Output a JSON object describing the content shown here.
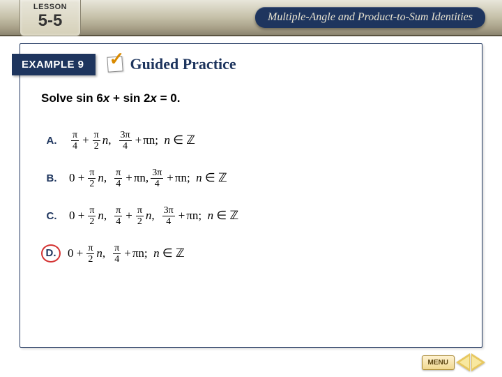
{
  "header": {
    "lesson_label": "LESSON",
    "lesson_number": "5-5",
    "chapter_title": "Multiple-Angle and Product-to-Sum Identities"
  },
  "example": {
    "label": "EXAMPLE 9",
    "guided_label": "Guided Practice"
  },
  "question": {
    "prefix": "Solve sin 6",
    "var1": "x",
    "mid": " + sin 2",
    "var2": "x",
    "suffix": " = 0."
  },
  "answers": [
    {
      "letter": "A.",
      "selected": false,
      "terms": [
        {
          "n": "π",
          "d": "4",
          "op": "+"
        },
        {
          "n": "π",
          "d": "2",
          "coef": "n",
          "sep": ","
        },
        {
          "n": "3π",
          "d": "4",
          "op": "+",
          "trail": "πn;"
        }
      ],
      "tail": " n ∈ ℤ"
    },
    {
      "letter": "B.",
      "selected": false,
      "terms": [
        {
          "lead": "0 +",
          "n": "π",
          "d": "2",
          "coef": "n",
          "sep": ","
        },
        {
          "n": "π",
          "d": "4",
          "op": "+",
          "trail": "πn,"
        },
        {
          "n": "3π",
          "d": "4",
          "op": "+",
          "trail": "πn;"
        }
      ],
      "tail": " n ∈ ℤ"
    },
    {
      "letter": "C.",
      "selected": false,
      "terms": [
        {
          "lead": "0 +",
          "n": "π",
          "d": "2",
          "coef": "n",
          "sep": ","
        },
        {
          "n": "π",
          "d": "4",
          "op": "+"
        },
        {
          "n": "π",
          "d": "2",
          "coef": "n",
          "sep": ","
        },
        {
          "n": "3π",
          "d": "4",
          "op": "+",
          "trail": "πn;"
        }
      ],
      "tail": " n ∈ ℤ"
    },
    {
      "letter": "D.",
      "selected": true,
      "terms": [
        {
          "lead": "0 +",
          "n": "π",
          "d": "2",
          "coef": "n",
          "sep": ","
        },
        {
          "n": "π",
          "d": "4",
          "op": "+",
          "trail": "πn;"
        }
      ],
      "tail": " n ∈ ℤ"
    }
  ],
  "nav": {
    "menu_label": "MENU"
  },
  "colors": {
    "navy": "#1e355e",
    "band_top": "#e8e6da",
    "band_bottom": "#8a8470",
    "selected_ring": "#d43333",
    "gold_light": "#f8e8a0",
    "gold_dark": "#e8c860"
  }
}
